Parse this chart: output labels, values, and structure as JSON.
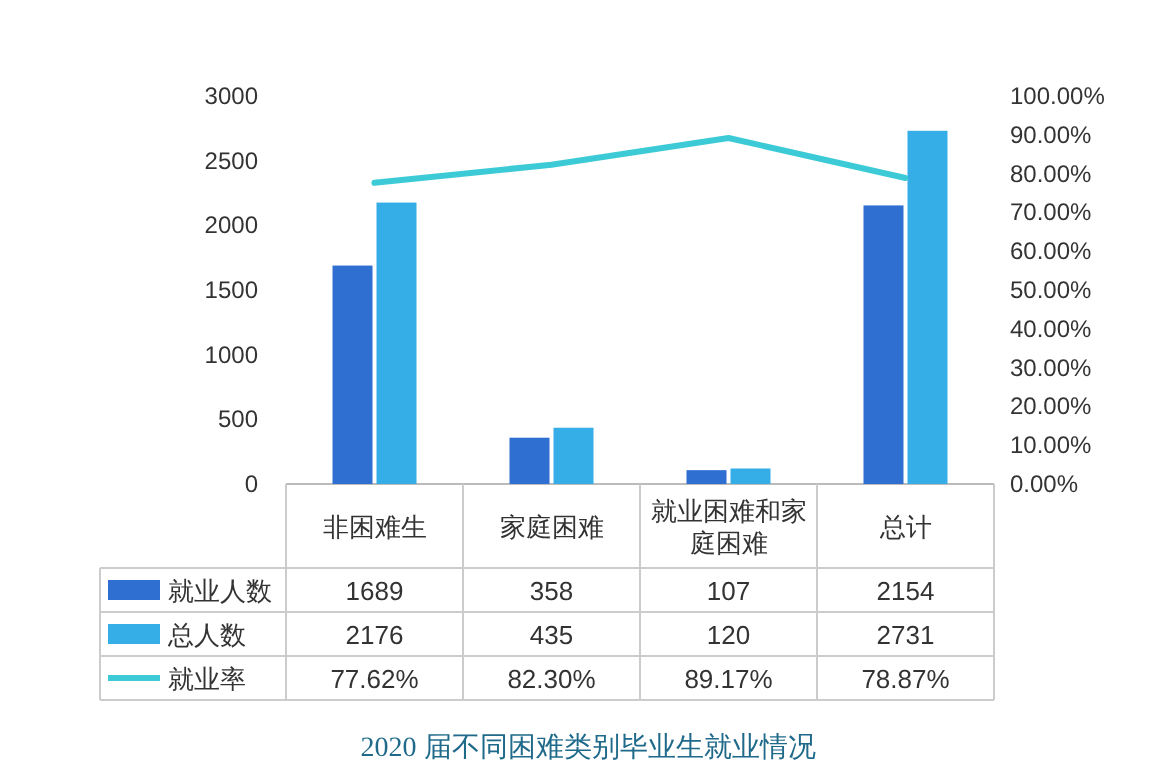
{
  "chart_data": {
    "type": "bar",
    "title": "2020 届不同困难类别毕业生就业情况",
    "categories": [
      "非困难生",
      "家庭困难",
      "就业困难和家庭困难",
      "总计"
    ],
    "series": [
      {
        "name": "就业人数",
        "color": "#2f6fd1",
        "values": [
          1689,
          358,
          107,
          2154
        ],
        "value_labels": [
          "1689",
          "358",
          "107",
          "2154"
        ]
      },
      {
        "name": "总人数",
        "color": "#35aee8",
        "values": [
          2176,
          435,
          120,
          2731
        ],
        "value_labels": [
          "2176",
          "435",
          "120",
          "2731"
        ]
      },
      {
        "name": "就业率",
        "type": "line",
        "axis": "y2",
        "color": "#3ccbd6",
        "values": [
          77.62,
          82.3,
          89.17,
          78.87
        ],
        "value_labels": [
          "77.62%",
          "82.30%",
          "89.17%",
          "78.87%"
        ]
      }
    ],
    "ylim": [
      0,
      3000
    ],
    "yticks": [
      0,
      500,
      1000,
      1500,
      2000,
      2500,
      3000
    ],
    "y2lim": [
      0,
      100
    ],
    "y2ticks": [
      {
        "value": 0,
        "label": "0.00%"
      },
      {
        "value": 10,
        "label": "10.00%"
      },
      {
        "value": 20,
        "label": "20.00%"
      },
      {
        "value": 30,
        "label": "30.00%"
      },
      {
        "value": 40,
        "label": "40.00%"
      },
      {
        "value": 50,
        "label": "50.00%"
      },
      {
        "value": 60,
        "label": "60.00%"
      },
      {
        "value": 70,
        "label": "70.00%"
      },
      {
        "value": 80,
        "label": "80.00%"
      },
      {
        "value": 90,
        "label": "90.00%"
      },
      {
        "value": 100,
        "label": "100.00%"
      }
    ],
    "legend": "bottom left"
  }
}
